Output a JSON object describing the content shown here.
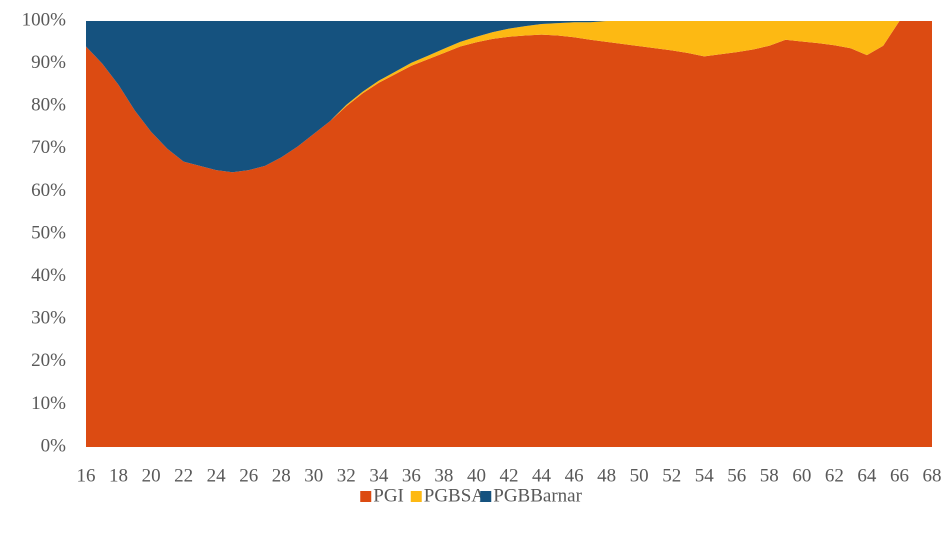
{
  "chart_data": {
    "type": "stacked_area_percent",
    "x": [
      16,
      17,
      18,
      19,
      20,
      21,
      22,
      23,
      24,
      25,
      26,
      27,
      28,
      29,
      30,
      31,
      32,
      33,
      34,
      35,
      36,
      37,
      38,
      39,
      40,
      41,
      42,
      43,
      44,
      45,
      46,
      47,
      48,
      49,
      50,
      51,
      52,
      53,
      54,
      55,
      56,
      57,
      58,
      59,
      60,
      61,
      62,
      63,
      64,
      65,
      66,
      67,
      68
    ],
    "series": [
      {
        "name": "PGI",
        "color": "#dc4b12",
        "values": [
          94,
          90,
          85,
          79,
          74,
          70,
          67,
          66,
          65,
          64.5,
          65,
          66,
          68,
          70.5,
          73.5,
          76.5,
          80,
          83,
          85.5,
          87.5,
          89.5,
          91,
          92.5,
          94,
          95,
          95.8,
          96.3,
          96.6,
          96.8,
          96.6,
          96.2,
          95.6,
          95.1,
          94.6,
          94.1,
          93.6,
          93.1,
          92.5,
          91.7,
          92.2,
          92.7,
          93.3,
          94.2,
          95.6,
          95.2,
          94.8,
          94.3,
          93.6,
          92.0,
          94.2,
          100,
          100,
          100
        ]
      },
      {
        "name": "PGBSA",
        "color": "#fdb913",
        "values": [
          0,
          0,
          0,
          0,
          0,
          0,
          0,
          0,
          0,
          0,
          0,
          0,
          0,
          0,
          0,
          0,
          0.3,
          0.4,
          0.5,
          0.6,
          0.7,
          0.8,
          1.0,
          1.1,
          1.3,
          1.6,
          1.9,
          2.2,
          2.5,
          2.9,
          3.5,
          4.1,
          4.9,
          5.4,
          5.9,
          6.4,
          6.9,
          7.5,
          8.3,
          7.8,
          7.3,
          6.7,
          5.8,
          4.4,
          4.8,
          5.2,
          5.7,
          6.4,
          8.0,
          5.8,
          0,
          0,
          0
        ]
      },
      {
        "name": "PGBBarnar",
        "color": "#15527f",
        "values": [
          6,
          10,
          15,
          21,
          26,
          30,
          33,
          34,
          35,
          35.5,
          35,
          34,
          32,
          29.5,
          26.5,
          23.5,
          19.7,
          16.6,
          14,
          11.9,
          9.8,
          8.2,
          6.5,
          4.9,
          3.7,
          2.6,
          1.8,
          1.2,
          0.7,
          0.5,
          0.3,
          0.3,
          0,
          0,
          0,
          0,
          0,
          0,
          0,
          0,
          0,
          0,
          0,
          0,
          0,
          0,
          0,
          0,
          0,
          0,
          0,
          0,
          0
        ]
      }
    ],
    "xlim": [
      16,
      68
    ],
    "xticks": [
      16,
      18,
      20,
      22,
      24,
      26,
      28,
      30,
      32,
      34,
      36,
      38,
      40,
      42,
      44,
      46,
      48,
      50,
      52,
      54,
      56,
      58,
      60,
      62,
      64,
      66,
      68
    ],
    "ylim": [
      0,
      100
    ],
    "yticks": [
      {
        "value": 0,
        "label": "0%"
      },
      {
        "value": 10,
        "label": "10%"
      },
      {
        "value": 20,
        "label": "20%"
      },
      {
        "value": 30,
        "label": "30%"
      },
      {
        "value": 40,
        "label": "40%"
      },
      {
        "value": 50,
        "label": "50%"
      },
      {
        "value": 60,
        "label": "60%"
      },
      {
        "value": 70,
        "label": "70%"
      },
      {
        "value": 80,
        "label": "80%"
      },
      {
        "value": 90,
        "label": "90%"
      },
      {
        "value": 100,
        "label": "100%"
      }
    ],
    "legend": "bottom"
  }
}
